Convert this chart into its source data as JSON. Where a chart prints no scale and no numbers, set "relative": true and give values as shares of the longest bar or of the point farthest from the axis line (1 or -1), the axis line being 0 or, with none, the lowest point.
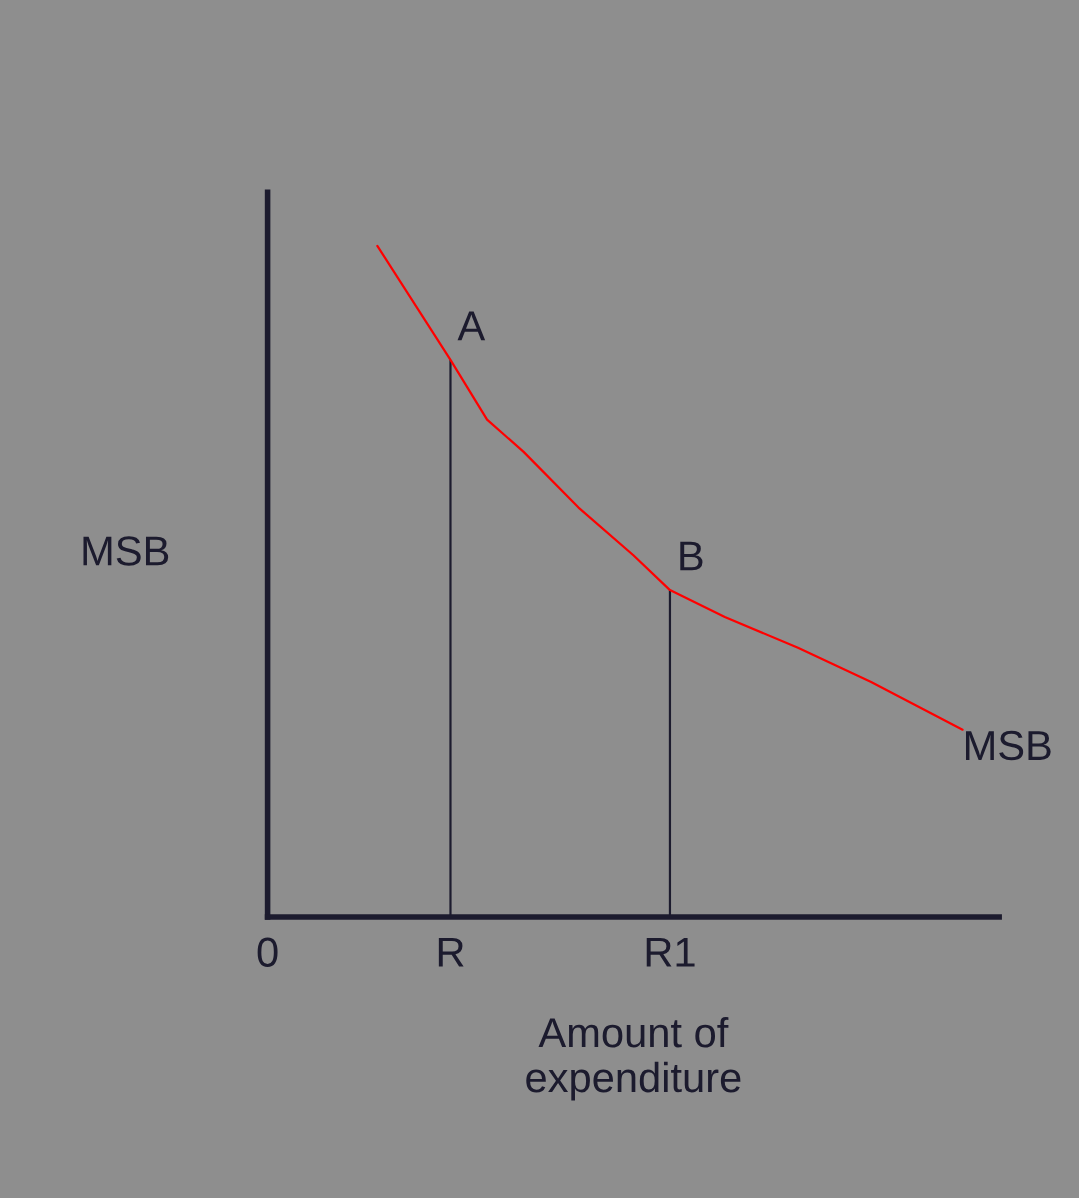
{
  "chart_data": {
    "type": "line",
    "relative": true,
    "xlabel": "Amount of\nexpenditure",
    "ylabel": "MSB",
    "categories": [
      "0",
      null,
      null,
      null,
      null,
      null,
      null,
      null,
      null,
      null,
      "R",
      null,
      null,
      null,
      null,
      null,
      null,
      null,
      null,
      null,
      null,
      null,
      "R1",
      null,
      null,
      null,
      null,
      null,
      null,
      null,
      null,
      null,
      null,
      null,
      null,
      null,
      null,
      null,
      null,
      null,
      null
    ],
    "series": [
      {
        "name": "MSB",
        "color": "#ff0000",
        "values": [
          null,
          null,
          null,
          null,
          null,
          null,
          1,
          null,
          null,
          null,
          0.83,
          null,
          0.741,
          null,
          0.693,
          null,
          null,
          0.61,
          null,
          null,
          0.539,
          null,
          0.487,
          null,
          null,
          0.447,
          null,
          null,
          null,
          0.401,
          null,
          null,
          null,
          0.35,
          null,
          null,
          null,
          null,
          0.279,
          null,
          null
        ]
      },
      {
        "type": "bar",
        "color": "#1c1b2e",
        "values": [
          null,
          null,
          null,
          null,
          null,
          null,
          null,
          null,
          null,
          null,
          0.83,
          null,
          null,
          null,
          null,
          null,
          null,
          null,
          null,
          null,
          null,
          null,
          0.487,
          null,
          null,
          null,
          null,
          null,
          null,
          null,
          null,
          null,
          null,
          null,
          null,
          null,
          null,
          null,
          null,
          null,
          null
        ]
      }
    ],
    "annotations": [
      {
        "text": "A",
        "x": "R",
        "y": 0.83
      },
      {
        "text": "B",
        "x": "R1",
        "y": 0.487
      }
    ],
    "grid": false,
    "legend": false
  }
}
